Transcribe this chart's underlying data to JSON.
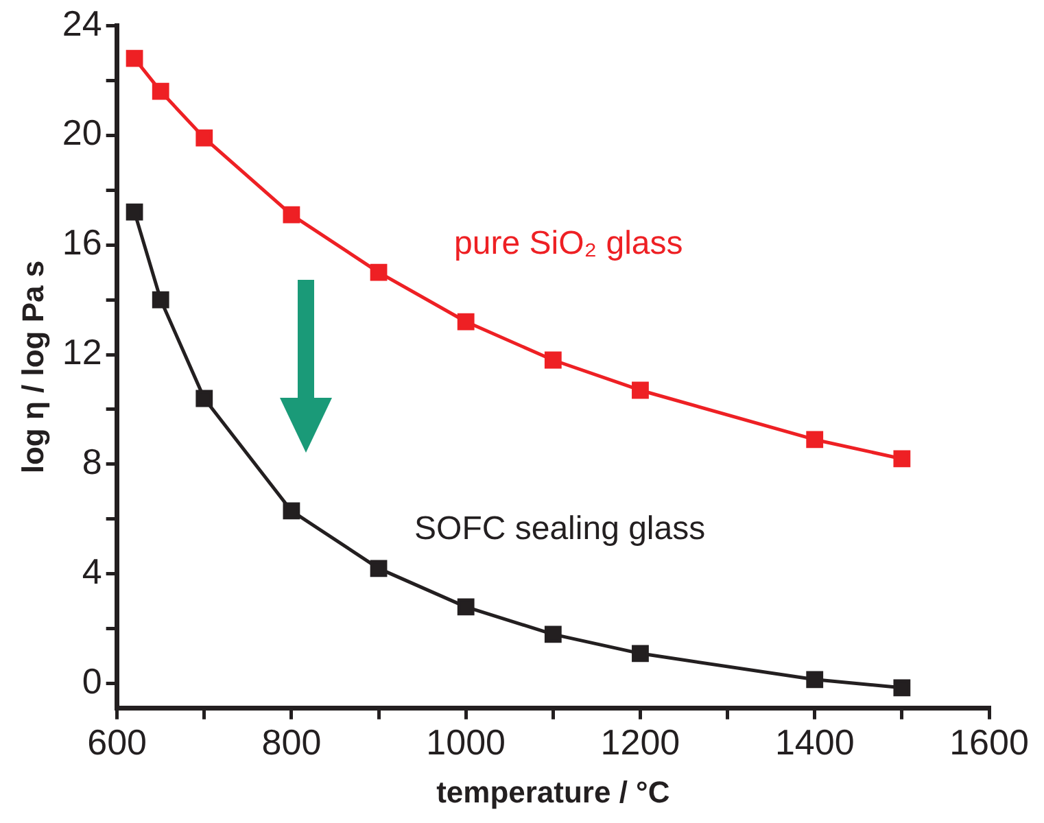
{
  "chart_data": {
    "type": "line",
    "xlabel": "temperature / °C",
    "ylabel": "log η / log Pa s",
    "xlim": [
      600,
      1600
    ],
    "xticks": [
      600,
      {
        "value": 700,
        "label": null
      },
      800,
      {
        "value": 900,
        "label": null
      },
      1000,
      {
        "value": 1100,
        "label": null
      },
      1200,
      {
        "value": 1300,
        "label": null
      },
      1400,
      {
        "value": 1500,
        "label": null
      },
      1600
    ],
    "ylim": [
      -0.9,
      24
    ],
    "yticks": [
      0,
      {
        "value": 2,
        "label": null
      },
      4,
      {
        "value": 6,
        "label": null
      },
      8,
      {
        "value": 10,
        "label": null
      },
      12,
      {
        "value": 14,
        "label": null
      },
      16,
      {
        "value": 18,
        "label": null
      },
      20,
      {
        "value": 22,
        "label": null
      },
      24
    ],
    "grid": false,
    "legend": false,
    "marker": "square",
    "line_style": "solid",
    "series": [
      {
        "name": "pure SiO₂ glass",
        "color": "#ee2024",
        "x": [
          620,
          650,
          700,
          800,
          900,
          1000,
          1100,
          1200,
          1400,
          1500
        ],
        "values": [
          22.8,
          21.6,
          19.9,
          17.1,
          15.0,
          13.2,
          11.8,
          10.7,
          8.9,
          8.2
        ]
      },
      {
        "name": "SOFC sealing glass",
        "color": "#231f20",
        "x": [
          620,
          650,
          700,
          800,
          900,
          1000,
          1100,
          1200,
          1400,
          1500
        ],
        "values": [
          17.2,
          14.0,
          10.4,
          6.3,
          4.2,
          2.8,
          1.8,
          1.1,
          0.15,
          -0.15
        ]
      }
    ]
  }
}
